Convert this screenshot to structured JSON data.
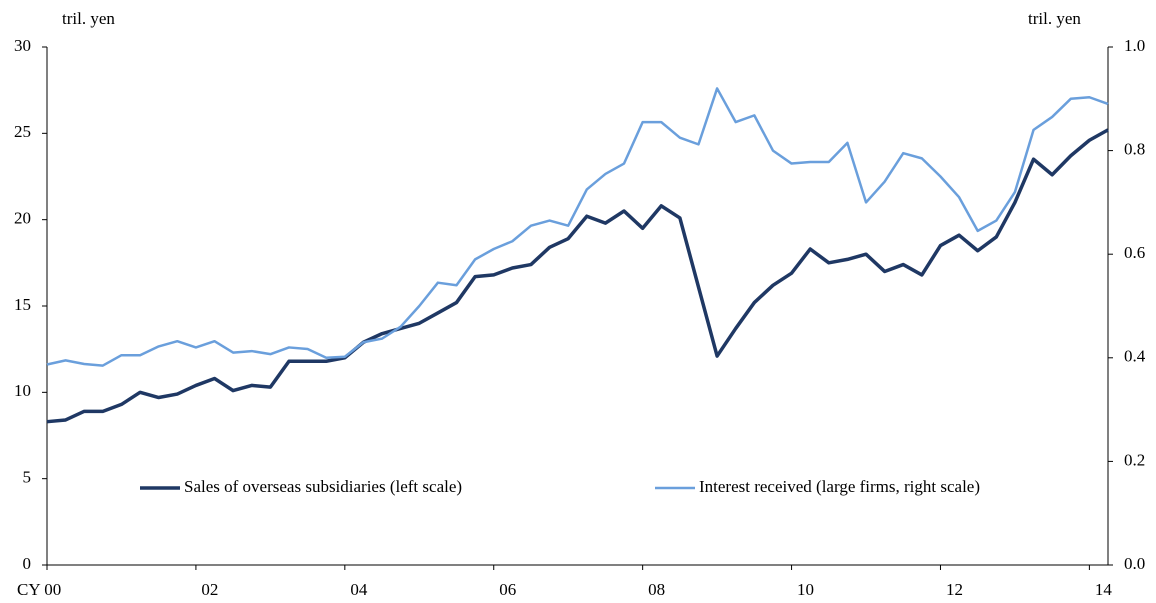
{
  "chart_data": {
    "type": "line",
    "y_label": "tril. yen",
    "y2_label": "tril. yen",
    "x": [
      2000,
      2000.25,
      2000.5,
      2000.75,
      2001,
      2001.25,
      2001.5,
      2001.75,
      2002,
      2002.25,
      2002.5,
      2002.75,
      2003,
      2003.25,
      2003.5,
      2003.75,
      2004,
      2004.25,
      2004.5,
      2004.75,
      2005,
      2005.25,
      2005.5,
      2005.75,
      2006,
      2006.25,
      2006.5,
      2006.75,
      2007,
      2007.25,
      2007.5,
      2007.75,
      2008,
      2008.25,
      2008.5,
      2008.75,
      2009,
      2009.25,
      2009.5,
      2009.75,
      2010,
      2010.25,
      2010.5,
      2010.75,
      2011,
      2011.25,
      2011.5,
      2011.75,
      2012,
      2012.25,
      2012.5,
      2012.75,
      2013,
      2013.25,
      2013.5,
      2013.75,
      2014,
      2014.25
    ],
    "series": [
      {
        "name": "Sales of overseas subsidiaries (left scale)",
        "color": "#1f3864",
        "width": 3.5,
        "values": [
          8.3,
          8.4,
          8.9,
          8.9,
          9.3,
          10.0,
          9.7,
          9.9,
          10.4,
          10.8,
          10.1,
          10.4,
          10.3,
          11.8,
          11.8,
          11.8,
          12.0,
          12.9,
          13.4,
          13.7,
          14.0,
          14.6,
          15.2,
          16.7,
          16.8,
          17.2,
          17.4,
          18.4,
          18.9,
          20.2,
          19.8,
          20.5,
          19.5,
          20.8,
          20.1,
          16.1,
          12.1,
          13.7,
          15.2,
          16.2,
          16.9,
          18.3,
          17.5,
          17.7,
          18.0,
          17.0,
          17.4,
          16.8,
          18.5,
          19.1,
          18.2,
          19.0,
          21.0,
          23.5,
          22.6,
          23.7,
          24.6,
          25.2
        ]
      },
      {
        "name": "Interest received (large firms, right scale)",
        "color": "#6a9fdc",
        "width": 2.5,
        "axis": "y2",
        "values": [
          0.387,
          0.395,
          0.388,
          0.385,
          0.405,
          0.405,
          0.422,
          0.432,
          0.42,
          0.432,
          0.41,
          0.413,
          0.407,
          0.42,
          0.417,
          0.4,
          0.402,
          0.43,
          0.437,
          0.46,
          0.5,
          0.545,
          0.54,
          0.59,
          0.61,
          0.625,
          0.655,
          0.665,
          0.655,
          0.725,
          0.755,
          0.775,
          0.855,
          0.855,
          0.825,
          0.812,
          0.92,
          0.855,
          0.868,
          0.8,
          0.775,
          0.778,
          0.778,
          0.815,
          0.7,
          0.74,
          0.795,
          0.785,
          0.75,
          0.71,
          0.645,
          0.665,
          0.72,
          0.84,
          0.865,
          0.9,
          0.903,
          0.89
        ]
      }
    ],
    "xlim": [
      2000,
      2014.25
    ],
    "xticks": [
      {
        "value": 2000,
        "label": "CY 00"
      },
      {
        "value": 2002,
        "label": "02"
      },
      {
        "value": 2004,
        "label": "04"
      },
      {
        "value": 2006,
        "label": "06"
      },
      {
        "value": 2008,
        "label": "08"
      },
      {
        "value": 2010,
        "label": "10"
      },
      {
        "value": 2012,
        "label": "12"
      },
      {
        "value": 2014,
        "label": "14"
      }
    ],
    "ylim": [
      0,
      30
    ],
    "yticks": [
      0,
      5,
      10,
      15,
      20,
      25,
      30
    ],
    "y2lim": [
      0,
      1.0
    ],
    "y2ticks": [
      {
        "value": 0,
        "label": "0.0"
      },
      0.2,
      0.4,
      0.6,
      0.8,
      {
        "value": 1.0,
        "label": "1.0"
      }
    ]
  }
}
